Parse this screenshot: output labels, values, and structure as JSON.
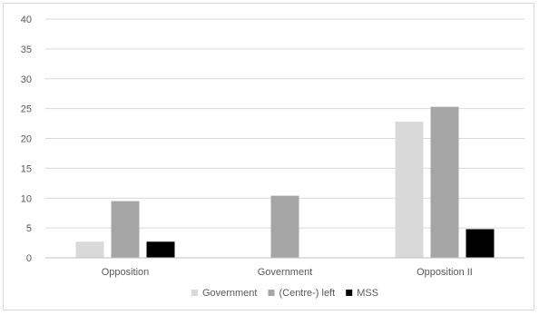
{
  "chart_data": {
    "type": "bar",
    "categories": [
      "Opposition",
      "Government",
      "Opposition II"
    ],
    "series": [
      {
        "name": "Government",
        "color": "#d9d9d9",
        "values": [
          2.7,
          0,
          22.8
        ]
      },
      {
        "name": "(Centre-) left",
        "color": "#a6a6a6",
        "values": [
          9.5,
          10.4,
          25.3
        ]
      },
      {
        "name": "MSS",
        "color": "#000000",
        "values": [
          2.7,
          0,
          4.8
        ]
      }
    ],
    "ylim": [
      0,
      40
    ],
    "yticks": [
      0,
      5,
      10,
      15,
      20,
      25,
      30,
      35,
      40
    ],
    "grid": true,
    "legend_position": "bottom"
  }
}
